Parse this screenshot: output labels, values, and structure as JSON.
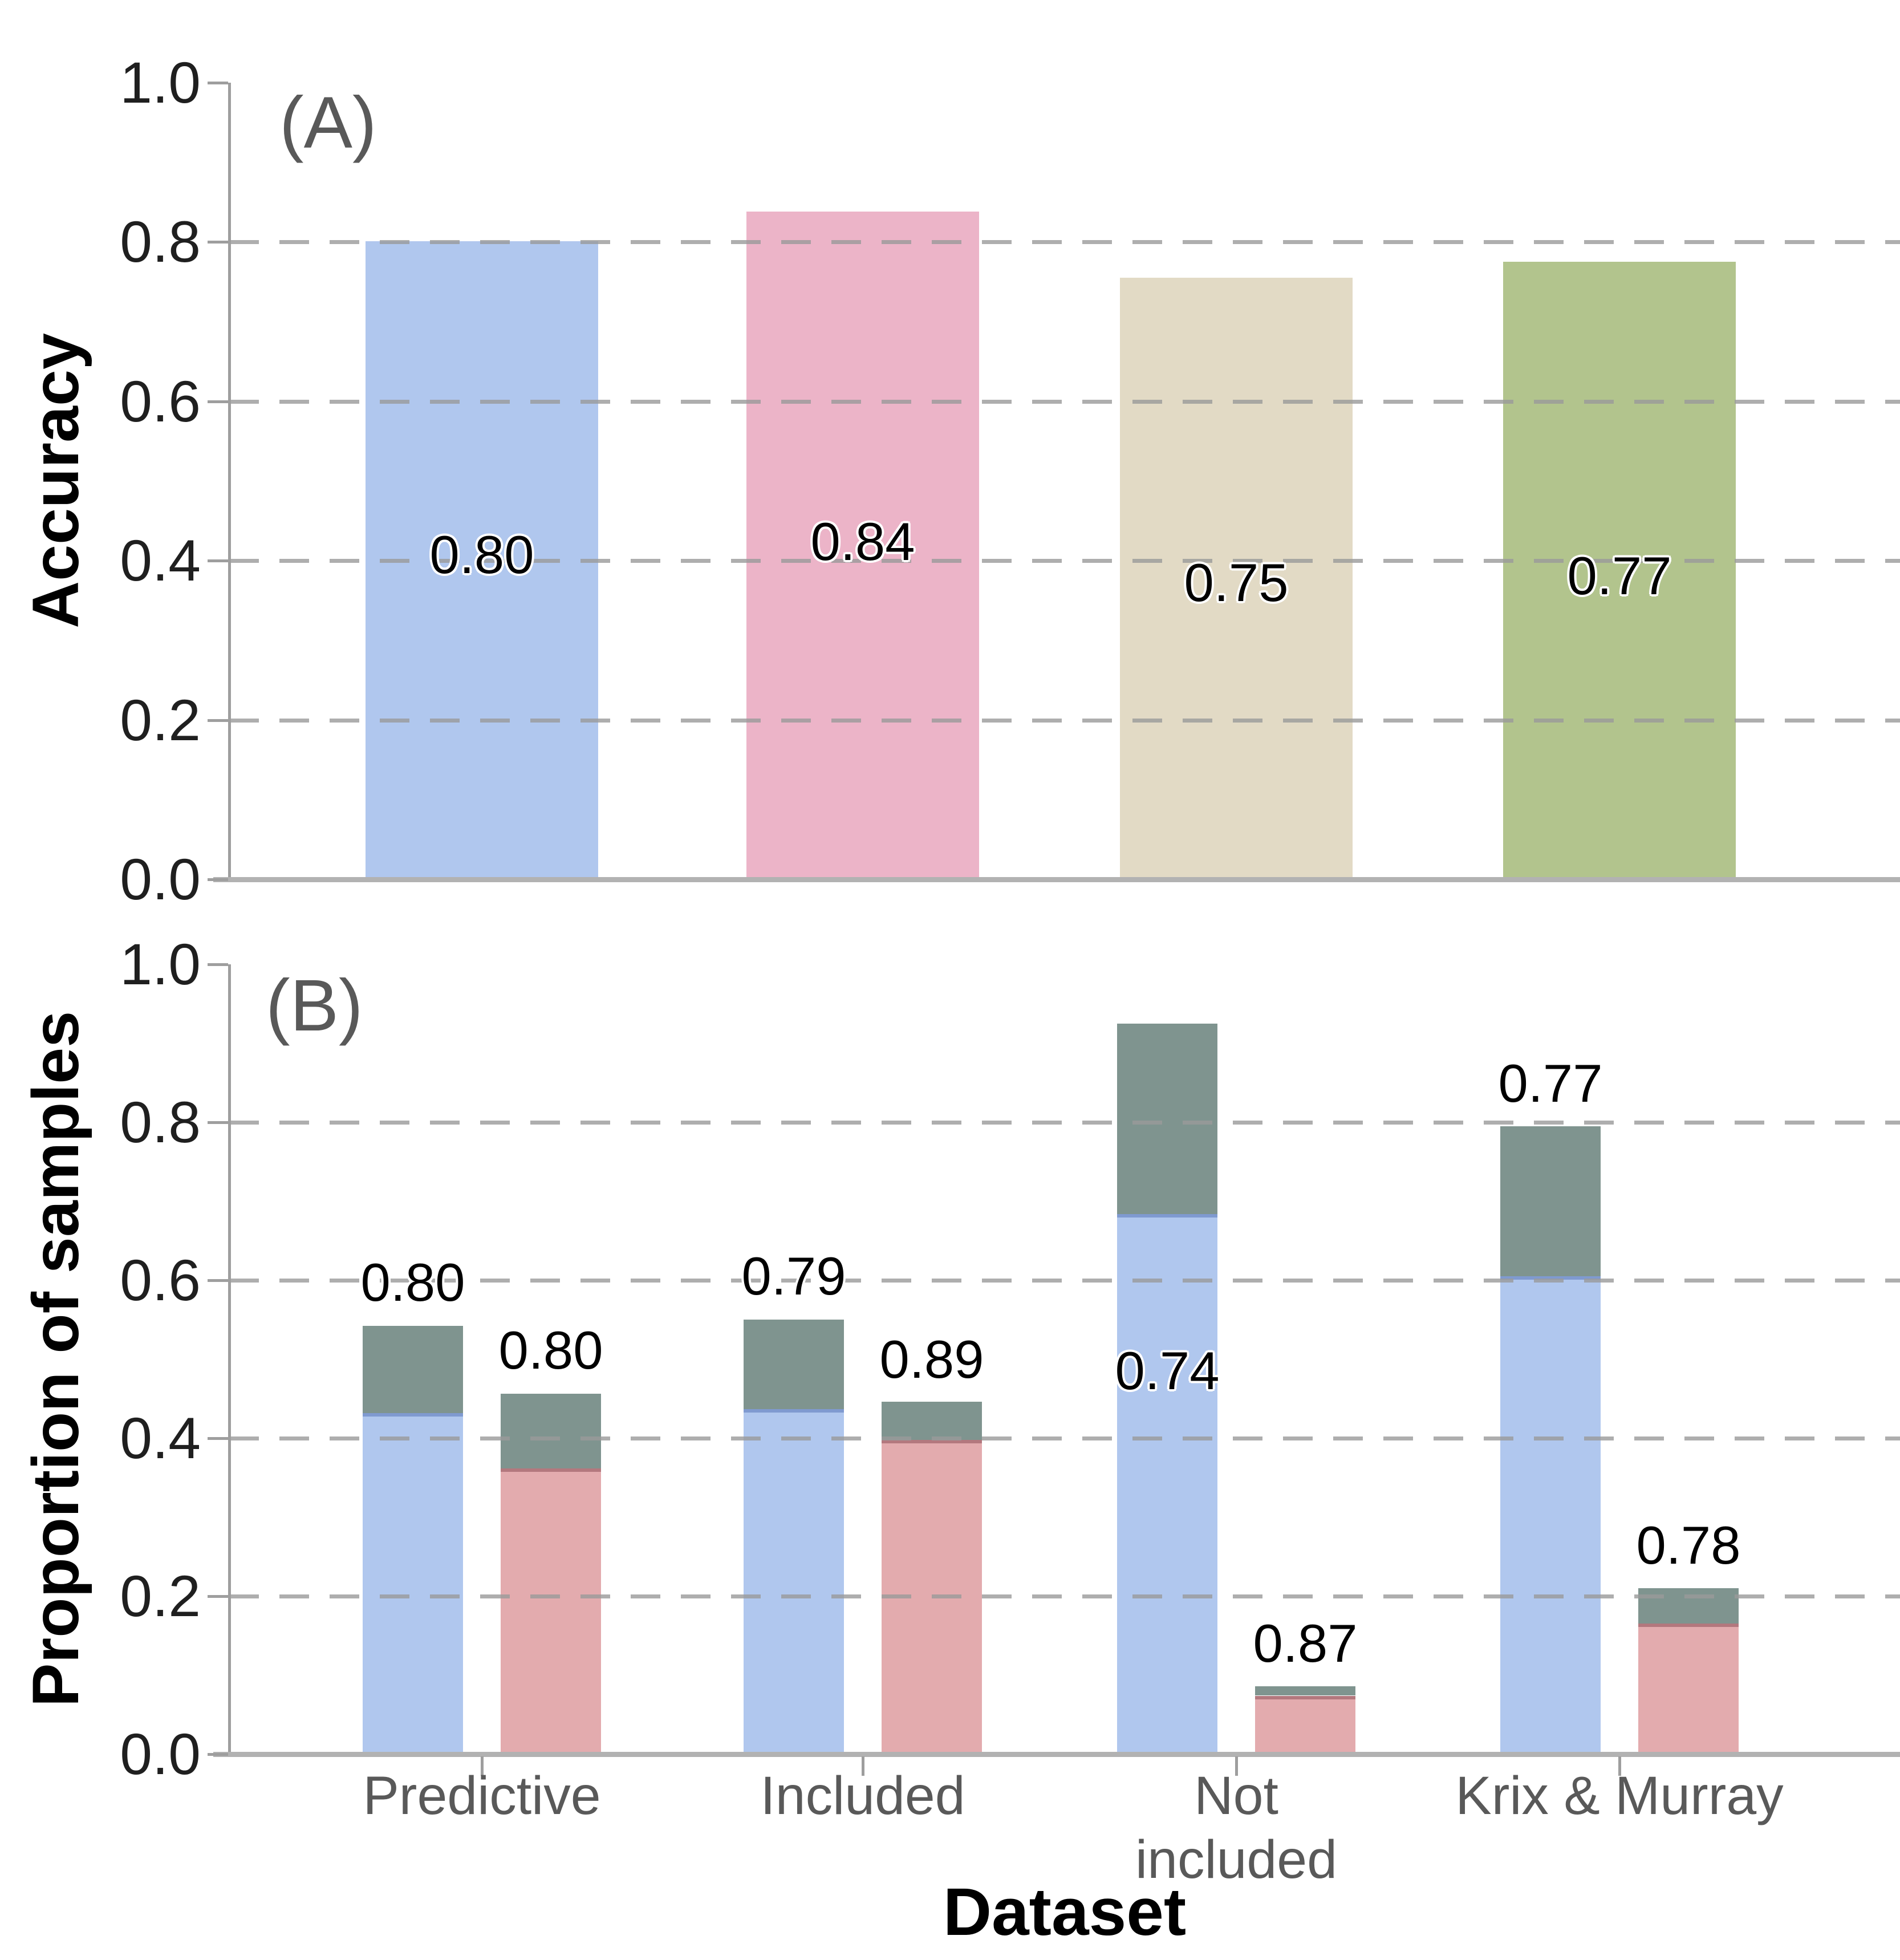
{
  "figure": {
    "panels": [
      {
        "tag": "(A)",
        "y_axis_title": "Accuracy"
      },
      {
        "tag": "(B)",
        "y_axis_title": "Proportion of samples"
      }
    ],
    "x_axis_title": "Dataset",
    "y_tick_labels": [
      "0.0",
      "0.2",
      "0.4",
      "0.6",
      "0.8",
      "1.0"
    ],
    "category_label_lines": [
      [
        "Predictive"
      ],
      [
        "Included"
      ],
      [
        "Not",
        "included"
      ],
      [
        "Krix & Murray"
      ]
    ]
  },
  "colors": {
    "bar_blue": "#b0c7ee",
    "bar_pink": "#ecb4c8",
    "bar_tan": "#e2dac5",
    "bar_green": "#b2c48d",
    "bar_salmon": "#e3abae",
    "bar_gray": "#7f948f",
    "blue_edge": "#7f9ad0",
    "salmon_edge": "#b3787e",
    "gridline": "#9a9a9a",
    "axis_line": "#9e9e9e",
    "baseline": "#b2b2b2",
    "tick_text": "#1f1f1f",
    "category_text": "#595959",
    "panel_tag_text": "#595959"
  },
  "chart_data": [
    {
      "type": "bar",
      "panel": "A",
      "title": "(A)",
      "xlabel": "",
      "ylabel": "Accuracy",
      "ylim": [
        0,
        1
      ],
      "grid_values": [
        0.2,
        0.4,
        0.6,
        0.8
      ],
      "grid_style": "dashed",
      "legend": "none",
      "categories": [
        "Predictive",
        "Included",
        "Not included",
        "Krix & Murray"
      ],
      "values": [
        0.8,
        0.84,
        0.75,
        0.77
      ],
      "bar_labels": [
        "0.80",
        "0.84",
        "0.75",
        "0.77"
      ],
      "bar_heights": [
        0.801,
        0.838,
        0.755,
        0.775
      ],
      "label_y": [
        0.407,
        0.424,
        0.372,
        0.381
      ],
      "bar_color_keys": [
        "bar_blue",
        "bar_pink",
        "bar_tan",
        "bar_green"
      ]
    },
    {
      "type": "stacked-bar",
      "panel": "B",
      "title": "(B)",
      "xlabel": "Dataset",
      "ylabel": "Proportion of samples",
      "ylim": [
        0,
        1
      ],
      "grid_values": [
        0.2,
        0.4,
        0.6,
        0.8
      ],
      "grid_style": "dashed",
      "legend": "none",
      "categories": [
        "Predictive",
        "Included",
        "Not included",
        "Krix & Murray"
      ],
      "groups": [
        {
          "category": "Predictive",
          "bars": [
            {
              "series": "blue",
              "bottom_value": 0.432,
              "total_value": 0.542,
              "label": "0.80",
              "label_y": 0.597
            },
            {
              "series": "salmon",
              "bottom_value": 0.362,
              "total_value": 0.456,
              "label": "0.80",
              "label_y": 0.511
            }
          ]
        },
        {
          "category": "Included",
          "bars": [
            {
              "series": "blue",
              "bottom_value": 0.437,
              "total_value": 0.55,
              "label": "0.79",
              "label_y": 0.605
            },
            {
              "series": "salmon",
              "bottom_value": 0.398,
              "total_value": 0.446,
              "label": "0.89",
              "label_y": 0.5
            }
          ]
        },
        {
          "category": "Not included",
          "bars": [
            {
              "series": "blue",
              "bottom_value": 0.684,
              "total_value": 0.925,
              "label": "0.74",
              "label_y": 0.485
            },
            {
              "series": "salmon",
              "bottom_value": 0.074,
              "total_value": 0.086,
              "label": "0.87",
              "label_y": 0.14
            }
          ]
        },
        {
          "category": "Krix & Murray",
          "bars": [
            {
              "series": "blue",
              "bottom_value": 0.605,
              "total_value": 0.795,
              "label": "0.77",
              "label_y": 0.849
            },
            {
              "series": "salmon",
              "bottom_value": 0.165,
              "total_value": 0.21,
              "label": "0.78",
              "label_y": 0.264
            }
          ]
        }
      ]
    }
  ]
}
